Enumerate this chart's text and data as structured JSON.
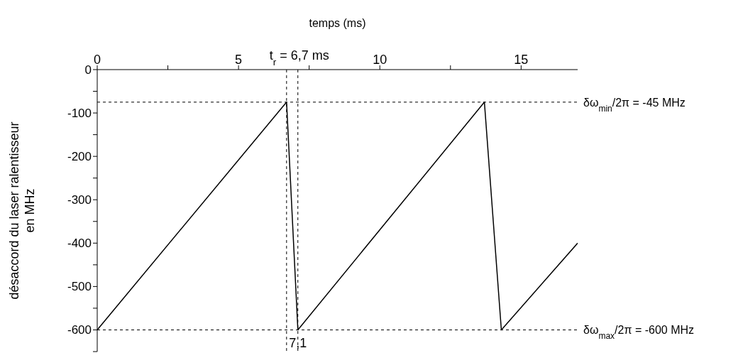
{
  "chart_data": {
    "type": "line",
    "xlabel": "temps (ms)",
    "ylabel": "désaccord du laser ralentisseur\nen MHz",
    "x": [
      0,
      6.7,
      7.1,
      13.7,
      14.3,
      17
    ],
    "series": [
      {
        "color": "#000000",
        "values": [
          -600,
          -75,
          -600,
          -75,
          -600,
          -400
        ]
      }
    ],
    "xlim": [
      0,
      17
    ],
    "xticks": [
      0,
      {
        "value": 2.5,
        "label": null
      },
      5,
      {
        "value": 7.5,
        "label": null
      },
      10,
      {
        "value": 12.5,
        "label": null
      },
      15
    ],
    "ylim": [
      -650,
      0
    ],
    "yticks": [
      {
        "value": -650,
        "label": null
      },
      -600,
      {
        "value": -550,
        "label": null
      },
      -500,
      {
        "value": -450,
        "label": null
      },
      -400,
      {
        "value": -350,
        "label": null
      },
      -300,
      {
        "value": -250,
        "label": null
      },
      -200,
      {
        "value": -150,
        "label": null
      },
      -100,
      {
        "value": -50,
        "label": null
      },
      0
    ],
    "ref_lines": [
      {
        "axis": "x",
        "value": 6.7,
        "label": "t$_{r}$ = 6,7 ms",
        "line_style": "dashed",
        "color": "#000000"
      },
      {
        "axis": "x",
        "value": 7.1,
        "label": "7,1",
        "line_style": "dashed",
        "color": "#000000"
      },
      {
        "axis": "y",
        "value": -75,
        "line_style": "dashed",
        "color": "#000000"
      },
      {
        "axis": "y",
        "value": -600,
        "label": "δω$_{max}$/2π = -600 MHz",
        "line_style": "dashed",
        "color": "#000000"
      }
    ],
    "annotations": [
      "δω$_{min}$/2π = -45 MHz"
    ],
    "grid": false,
    "legend": false,
    "marker": "none",
    "line_style": "solid"
  }
}
